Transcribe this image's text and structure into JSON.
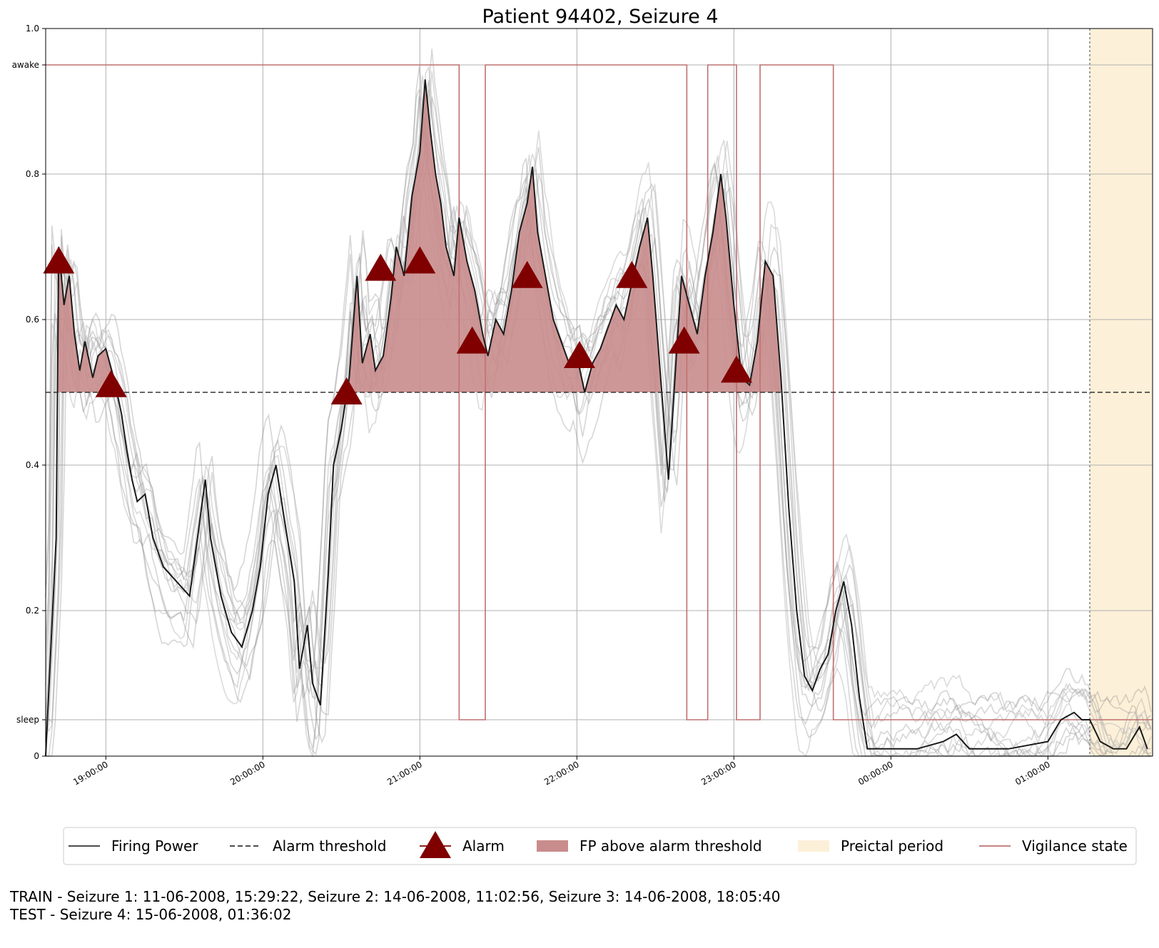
{
  "chart_data": {
    "type": "line",
    "title": "Patient 94402, Seizure 4",
    "xlabel": "",
    "ylabel": "",
    "x_unit": "time of day",
    "x_start": "18:37:00",
    "x_end": "01:40:00",
    "ylim": [
      0,
      1
    ],
    "y_ticks": [
      {
        "value": 0,
        "label": "0"
      },
      {
        "value": 0.05,
        "label": "sleep"
      },
      {
        "value": 0.2,
        "label": "0.2"
      },
      {
        "value": 0.4,
        "label": "0.4"
      },
      {
        "value": 0.6,
        "label": "0.6"
      },
      {
        "value": 0.8,
        "label": "0.8"
      },
      {
        "value": 0.95,
        "label": "awake"
      },
      {
        "value": 1.0,
        "label": "1.0"
      }
    ],
    "x_ticks": [
      "19:00:00",
      "20:00:00",
      "21:00:00",
      "22:00:00",
      "23:00:00",
      "00:00:00",
      "01:00:00"
    ],
    "grid": true,
    "legend_position": "bottom",
    "alarm_threshold": 0.5,
    "preictal_period": {
      "start": "01:16:00",
      "end": "01:40:00"
    },
    "legend": [
      {
        "label": "Firing Power",
        "kind": "line",
        "color": "#333333"
      },
      {
        "label": "Alarm threshold",
        "kind": "dashed",
        "color": "#333333"
      },
      {
        "label": "Alarm",
        "kind": "triangle",
        "color": "#800000"
      },
      {
        "label": "FP above alarm threshold",
        "kind": "patch",
        "color": "#c98c8c"
      },
      {
        "label": "Preictal period",
        "kind": "patch",
        "color": "#fdf0d8"
      },
      {
        "label": "Vigilance state",
        "kind": "line",
        "color": "#c07070"
      }
    ],
    "firing_power": [
      [
        "18:37:00",
        0.0
      ],
      [
        "18:41:00",
        0.3
      ],
      [
        "18:42:00",
        0.7
      ],
      [
        "18:44:00",
        0.62
      ],
      [
        "18:46:00",
        0.66
      ],
      [
        "18:48:00",
        0.58
      ],
      [
        "18:50:00",
        0.53
      ],
      [
        "18:52:00",
        0.57
      ],
      [
        "18:55:00",
        0.52
      ],
      [
        "18:57:00",
        0.55
      ],
      [
        "19:00:00",
        0.56
      ],
      [
        "19:03:00",
        0.52
      ],
      [
        "19:06:00",
        0.47
      ],
      [
        "19:08:00",
        0.42
      ],
      [
        "19:10:00",
        0.38
      ],
      [
        "19:12:00",
        0.35
      ],
      [
        "19:15:00",
        0.36
      ],
      [
        "19:18:00",
        0.3
      ],
      [
        "19:20:00",
        0.28
      ],
      [
        "19:22:00",
        0.26
      ],
      [
        "19:32:00",
        0.22
      ],
      [
        "19:35:00",
        0.3
      ],
      [
        "19:38:00",
        0.38
      ],
      [
        "19:40:00",
        0.3
      ],
      [
        "19:44:00",
        0.22
      ],
      [
        "19:48:00",
        0.17
      ],
      [
        "19:52:00",
        0.15
      ],
      [
        "19:56:00",
        0.2
      ],
      [
        "19:59:00",
        0.26
      ],
      [
        "20:02:00",
        0.36
      ],
      [
        "20:05:00",
        0.4
      ],
      [
        "20:08:00",
        0.33
      ],
      [
        "20:12:00",
        0.24
      ],
      [
        "20:14:00",
        0.12
      ],
      [
        "20:17:00",
        0.18
      ],
      [
        "20:19:00",
        0.1
      ],
      [
        "20:22:00",
        0.07
      ],
      [
        "20:25:00",
        0.25
      ],
      [
        "20:27:00",
        0.4
      ],
      [
        "20:30:00",
        0.45
      ],
      [
        "20:33:00",
        0.52
      ],
      [
        "20:36:00",
        0.66
      ],
      [
        "20:38:00",
        0.54
      ],
      [
        "20:41:00",
        0.58
      ],
      [
        "20:43:00",
        0.53
      ],
      [
        "20:46:00",
        0.55
      ],
      [
        "20:49:00",
        0.63
      ],
      [
        "20:51:00",
        0.7
      ],
      [
        "20:54:00",
        0.66
      ],
      [
        "20:57:00",
        0.77
      ],
      [
        "21:00:00",
        0.83
      ],
      [
        "21:02:00",
        0.93
      ],
      [
        "21:04:00",
        0.86
      ],
      [
        "21:06:00",
        0.8
      ],
      [
        "21:08:00",
        0.76
      ],
      [
        "21:10:00",
        0.7
      ],
      [
        "21:13:00",
        0.66
      ],
      [
        "21:15:00",
        0.74
      ],
      [
        "21:18:00",
        0.68
      ],
      [
        "21:21:00",
        0.64
      ],
      [
        "21:24:00",
        0.58
      ],
      [
        "21:26:00",
        0.55
      ],
      [
        "21:29:00",
        0.6
      ],
      [
        "21:32:00",
        0.58
      ],
      [
        "21:35:00",
        0.64
      ],
      [
        "21:38:00",
        0.72
      ],
      [
        "21:41:00",
        0.76
      ],
      [
        "21:43:00",
        0.81
      ],
      [
        "21:45:00",
        0.72
      ],
      [
        "21:48:00",
        0.66
      ],
      [
        "21:51:00",
        0.6
      ],
      [
        "21:54:00",
        0.57
      ],
      [
        "21:57:00",
        0.54
      ],
      [
        "22:00:00",
        0.55
      ],
      [
        "22:03:00",
        0.5
      ],
      [
        "22:06:00",
        0.54
      ],
      [
        "22:09:00",
        0.56
      ],
      [
        "22:12:00",
        0.59
      ],
      [
        "22:15:00",
        0.62
      ],
      [
        "22:18:00",
        0.6
      ],
      [
        "22:21:00",
        0.65
      ],
      [
        "22:24:00",
        0.7
      ],
      [
        "22:27:00",
        0.74
      ],
      [
        "22:29:00",
        0.66
      ],
      [
        "22:32:00",
        0.52
      ],
      [
        "22:35:00",
        0.38
      ],
      [
        "22:38:00",
        0.55
      ],
      [
        "22:40:00",
        0.66
      ],
      [
        "22:43:00",
        0.62
      ],
      [
        "22:46:00",
        0.58
      ],
      [
        "22:49:00",
        0.66
      ],
      [
        "22:52:00",
        0.72
      ],
      [
        "22:55:00",
        0.8
      ],
      [
        "22:57:00",
        0.74
      ],
      [
        "23:00:00",
        0.62
      ],
      [
        "23:03:00",
        0.52
      ],
      [
        "23:06:00",
        0.51
      ],
      [
        "23:09:00",
        0.57
      ],
      [
        "23:12:00",
        0.68
      ],
      [
        "23:15:00",
        0.66
      ],
      [
        "23:18:00",
        0.52
      ],
      [
        "23:21:00",
        0.34
      ],
      [
        "23:24:00",
        0.2
      ],
      [
        "23:27:00",
        0.11
      ],
      [
        "23:30:00",
        0.09
      ],
      [
        "23:33:00",
        0.12
      ],
      [
        "23:36:00",
        0.14
      ],
      [
        "23:39:00",
        0.2
      ],
      [
        "23:42:00",
        0.24
      ],
      [
        "23:45:00",
        0.18
      ],
      [
        "23:48:00",
        0.08
      ],
      [
        "23:51:00",
        0.01
      ],
      [
        "23:54:00",
        0.01
      ],
      [
        "00:00:00",
        0.01
      ],
      [
        "00:10:00",
        0.01
      ],
      [
        "00:20:00",
        0.02
      ],
      [
        "00:25:00",
        0.03
      ],
      [
        "00:30:00",
        0.01
      ],
      [
        "00:45:00",
        0.01
      ],
      [
        "01:00:00",
        0.02
      ],
      [
        "01:05:00",
        0.05
      ],
      [
        "01:10:00",
        0.06
      ],
      [
        "01:13:00",
        0.05
      ],
      [
        "01:16:00",
        0.05
      ],
      [
        "01:20:00",
        0.02
      ],
      [
        "01:25:00",
        0.01
      ],
      [
        "01:30:00",
        0.01
      ],
      [
        "01:35:00",
        0.04
      ],
      [
        "01:38:00",
        0.01
      ]
    ],
    "alarms": [
      {
        "time": "18:42:00",
        "value": 0.68
      },
      {
        "time": "19:02:00",
        "value": 0.51
      },
      {
        "time": "20:32:00",
        "value": 0.5
      },
      {
        "time": "20:45:00",
        "value": 0.67
      },
      {
        "time": "21:00:00",
        "value": 0.68
      },
      {
        "time": "21:20:00",
        "value": 0.57
      },
      {
        "time": "21:41:00",
        "value": 0.66
      },
      {
        "time": "22:01:00",
        "value": 0.55
      },
      {
        "time": "22:21:00",
        "value": 0.66
      },
      {
        "time": "22:41:00",
        "value": 0.57
      },
      {
        "time": "23:01:00",
        "value": 0.53
      }
    ],
    "vigilance_state": [
      {
        "from": "18:37:00",
        "to": "21:15:00",
        "state": "awake"
      },
      {
        "from": "21:15:00",
        "to": "21:25:00",
        "state": "sleep"
      },
      {
        "from": "21:25:00",
        "to": "22:42:00",
        "state": "awake"
      },
      {
        "from": "22:42:00",
        "to": "22:50:00",
        "state": "sleep"
      },
      {
        "from": "22:50:00",
        "to": "23:01:00",
        "state": "awake"
      },
      {
        "from": "23:01:00",
        "to": "23:10:00",
        "state": "sleep"
      },
      {
        "from": "23:10:00",
        "to": "23:38:00",
        "state": "awake"
      },
      {
        "from": "23:38:00",
        "to": "01:40:00",
        "state": "sleep"
      }
    ]
  },
  "footer": {
    "train_line": "TRAIN - Seizure 1: 11-06-2008, 15:29:22, Seizure 2: 14-06-2008, 11:02:56, Seizure 3: 14-06-2008, 18:05:40",
    "test_line": "TEST - Seizure 4: 15-06-2008, 01:36:02"
  }
}
